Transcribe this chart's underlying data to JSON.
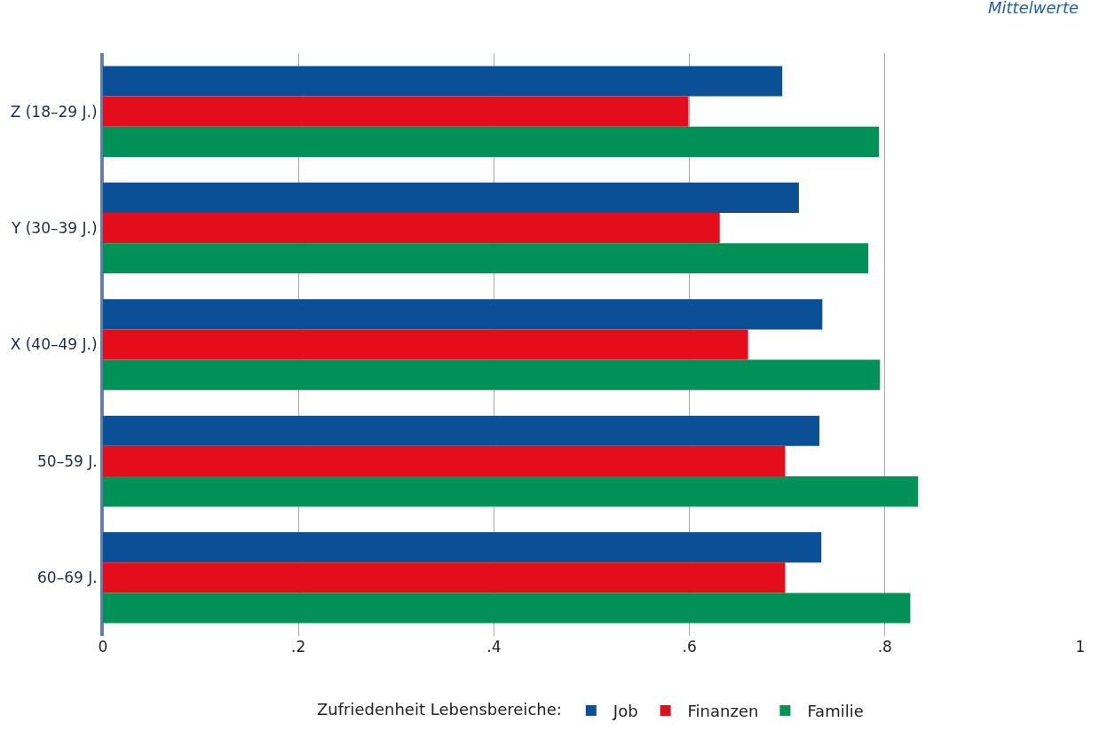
{
  "chart_data": {
    "type": "bar",
    "orientation": "horizontal",
    "annotations": [
      "Mittelwerte"
    ],
    "legend_title": "Zufriedenheit Lebensbereiche:",
    "categories": [
      "Z (18–29 J.)",
      "Y (30–39 J.)",
      "X (40–49 J.)",
      "50–59 J.",
      "60–69 J."
    ],
    "series": [
      {
        "name": "Job",
        "color": "#0a5096",
        "values": [
          0.695,
          0.712,
          0.736,
          0.733,
          0.735
        ]
      },
      {
        "name": "Finanzen",
        "color": "#e30d1b",
        "values": [
          0.599,
          0.631,
          0.66,
          0.698,
          0.698
        ]
      },
      {
        "name": "Familie",
        "color": "#009156",
        "values": [
          0.794,
          0.783,
          0.795,
          0.834,
          0.826
        ]
      }
    ],
    "xlim": [
      0,
      1
    ],
    "xticks": [
      0,
      {
        "value": 0.2,
        "label": ".2"
      },
      {
        "value": 0.4,
        "label": ".4"
      },
      {
        "value": 0.6,
        "label": ".6"
      },
      {
        "value": 0.8,
        "label": ".8"
      },
      1
    ],
    "grid": "x",
    "legend": "bottom"
  }
}
